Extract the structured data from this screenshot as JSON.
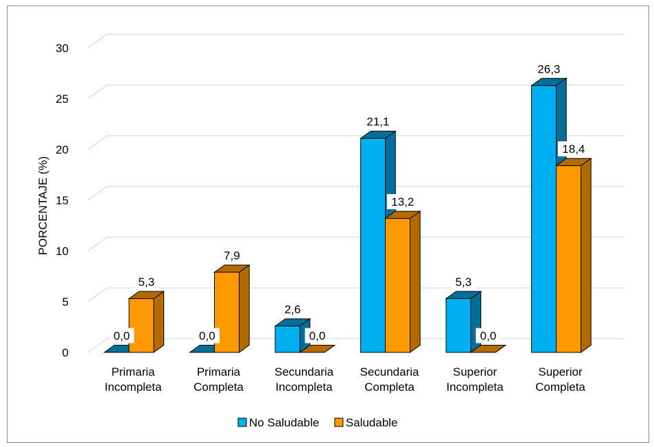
{
  "chart_data": {
    "type": "bar",
    "title": "",
    "xlabel": "",
    "ylabel": "PORCENTAJE (%)",
    "ylim": [
      0,
      30
    ],
    "yticks": [
      "0",
      "5",
      "10",
      "15",
      "20",
      "25",
      "30"
    ],
    "grid": true,
    "legend_position": "bottom",
    "categories": [
      [
        "Primaria",
        "Incompleta"
      ],
      [
        "Primaria",
        "Completa"
      ],
      [
        "Secundaria",
        "Incompleta"
      ],
      [
        "Secundaria",
        "Completa"
      ],
      [
        "Superior",
        "Incompleta"
      ],
      [
        "Superior",
        "Completa"
      ]
    ],
    "series": [
      {
        "name": "No Saludable",
        "color": "#00B0F0",
        "side_color": "#00709A",
        "values": [
          0.0,
          0.0,
          2.6,
          21.1,
          5.3,
          26.3
        ],
        "labels": [
          "0,0",
          "0,0",
          "2,6",
          "21,1",
          "5,3",
          "26,3"
        ]
      },
      {
        "name": "Saludable",
        "color": "#FF9900",
        "side_color": "#B36B00",
        "values": [
          5.3,
          7.9,
          0.0,
          13.2,
          0.0,
          18.4
        ],
        "labels": [
          "5,3",
          "7,9",
          "0,0",
          "13,2",
          "0,0",
          "18,4"
        ]
      }
    ]
  }
}
